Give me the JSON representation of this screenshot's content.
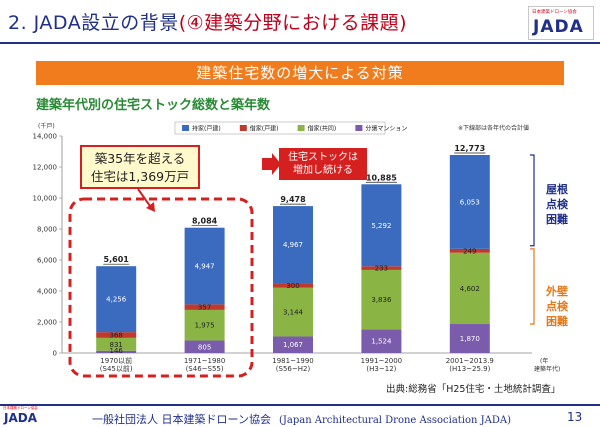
{
  "header": {
    "title_prefix": "2. JADA設立の背景",
    "title_highlight": "(④建築分野における課題)",
    "logo_small": "日本建築ドローン協会",
    "logo_big": "JADA"
  },
  "banner": "建築住宅数の増大による対策",
  "subtitle": "建築年代別の住宅ストック総数と築年数",
  "callouts": {
    "left": [
      "築35年を超える",
      "住宅は1,369万戸"
    ],
    "right": [
      "住宅ストックは",
      "増加し続ける"
    ],
    "side_roof": [
      "屋根",
      "点検",
      "困難"
    ],
    "side_wall": [
      "外壁",
      "点検",
      "困難"
    ]
  },
  "source": "出典:総務省「H25住宅・土地統計調査」",
  "footer": {
    "logo_small": "日本建築ドローン協会",
    "logo_big": "JADA",
    "org_jp": "一般社団法人 日本建築ドローン協会",
    "org_en": "(Japan Architectural Drone Association JADA)",
    "page": "13"
  },
  "colors": {
    "single_family_owned": "#3a6bbf",
    "single_family_rented": "#c0392b",
    "shared_rented": "#8ab545",
    "condo": "#7b5bab",
    "banner": "#f07c1d",
    "accent_red": "#d62020",
    "navy": "#1f2f8a"
  },
  "chart_data": {
    "type": "bar",
    "stacked": true,
    "unit_label": "(千戸)",
    "note": "※下線部は各年代の合計値",
    "x_unit": "(年\n建築年代)",
    "ylim": [
      0,
      14000
    ],
    "yticks": [
      "0",
      "2,000",
      "4,000",
      "6,000",
      "8,000",
      "10,000",
      "12,000",
      "14,000"
    ],
    "ytick_values": [
      0,
      2000,
      4000,
      6000,
      8000,
      10000,
      12000,
      14000
    ],
    "categories": [
      "1970以前",
      "1971~1980",
      "1981~1990",
      "1991~2000",
      "2001~2013.9"
    ],
    "subcategories": [
      "(S45以前)",
      "(S46~S55)",
      "(S56~H2)",
      "(H3~12)",
      "(H13~25.9)"
    ],
    "legend_position": "top",
    "series": [
      {
        "name": "分譲マンション",
        "color": "#7b5bab",
        "values": [
          146,
          805,
          1067,
          1524,
          1870
        ],
        "labels": [
          "146",
          "805",
          "1,067",
          "1,524",
          "1,870"
        ]
      },
      {
        "name": "借家(共同)",
        "color": "#8ab545",
        "values": [
          831,
          1975,
          3144,
          3836,
          4602
        ],
        "labels": [
          "831",
          "1,975",
          "3,144",
          "3,836",
          "4,602"
        ]
      },
      {
        "name": "借家(戸建)",
        "color": "#c0392b",
        "values": [
          368,
          357,
          300,
          233,
          249
        ],
        "labels": [
          "368",
          "357",
          "300",
          "233",
          "249"
        ]
      },
      {
        "name": "持家(戸建)",
        "color": "#3a6bbf",
        "values": [
          4256,
          4947,
          4967,
          5292,
          6053
        ],
        "labels": [
          "4,256",
          "4,947",
          "4,967",
          "5,292",
          "6,053"
        ]
      }
    ],
    "legend_order": [
      "持家(戸建)",
      "借家(戸建)",
      "借家(共同)",
      "分譲マンション"
    ],
    "totals": [
      5601,
      8084,
      9478,
      10885,
      12773
    ],
    "total_labels": [
      "5,601",
      "8,084",
      "9,478",
      "10,885",
      "12,773"
    ]
  }
}
